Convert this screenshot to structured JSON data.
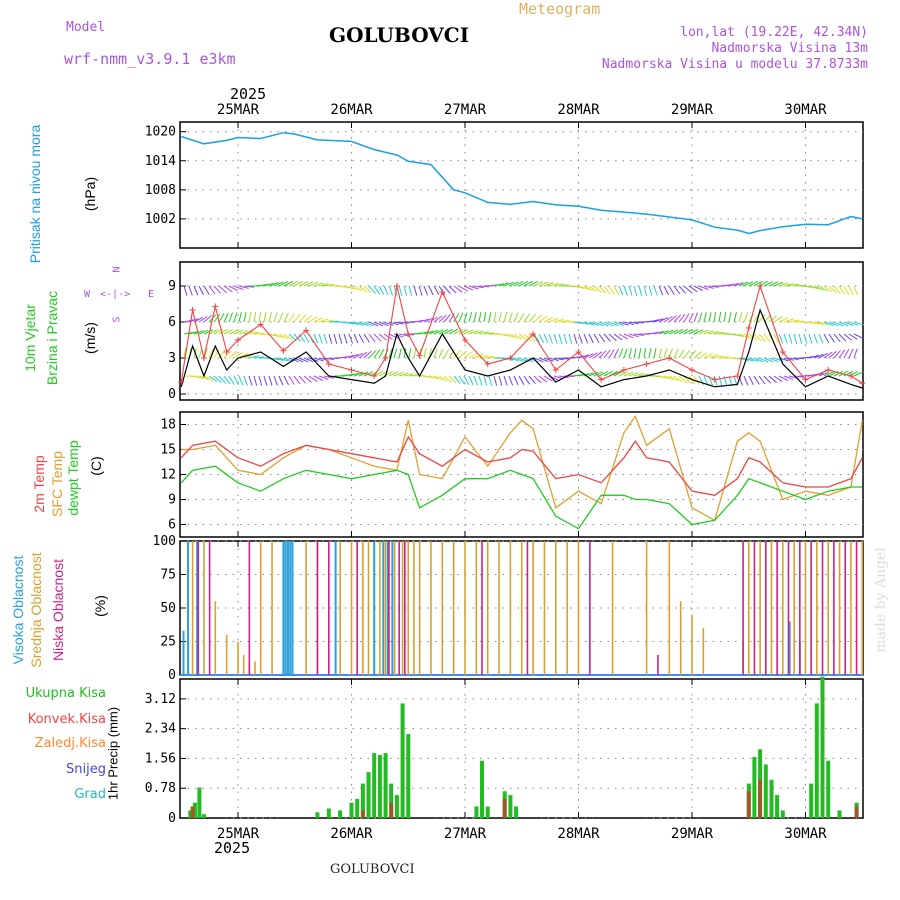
{
  "header": {
    "model_label": "Model",
    "model_name": "wrf-nmm_v3.9.1 e3km",
    "title": "GOLUBOVCI",
    "meteogram_label": "Meteogram",
    "lonlat": "lon,lat (19.22E, 42.34N)",
    "elevation": "Nadmorska Visina 13m",
    "model_elevation": "Nadmorska Visina u modelu 37.8733m",
    "footer": "GOLUBOVCI",
    "watermark": "made by Angel",
    "year_top": "2025",
    "year_bottom": "2025"
  },
  "colors": {
    "pressure": "#1aa0e6",
    "temp2m": "#ee4444",
    "sfc": "#e0a030",
    "dewpt": "#22cc22",
    "visoka": "#2aa0d8",
    "srednja": "#d8a030",
    "niska": "#cc2288",
    "ukupna": "#22bb22",
    "konvek": "#ee4444",
    "zaledj": "#ff8833",
    "snijeg": "#4444dd",
    "grad": "#22bbbb",
    "model_label": "#aa55dd",
    "meteogram": "#e0b060"
  },
  "chart_data": [
    {
      "type": "line",
      "title": "Pritisak na nivou mora",
      "ylabel": "(hPa)",
      "x_days": [
        "25MAR",
        "26MAR",
        "27MAR",
        "28MAR",
        "29MAR",
        "30MAR"
      ],
      "ylim": [
        996,
        1022
      ],
      "yticks": [
        1002,
        1008,
        1014,
        1020
      ],
      "x": [
        -0.5,
        -0.3,
        -0.1,
        0.0,
        0.2,
        0.4,
        0.5,
        0.7,
        1.0,
        1.2,
        1.4,
        1.5,
        1.7,
        1.9,
        2.0,
        2.2,
        2.4,
        2.6,
        2.8,
        3.0,
        3.2,
        3.4,
        3.6,
        3.8,
        4.0,
        4.2,
        4.4,
        4.5,
        4.6,
        4.8,
        5.0,
        5.2,
        5.4,
        5.5
      ],
      "series": [
        {
          "name": "Pritisak",
          "values": [
            1019,
            1017.5,
            1018.2,
            1018.8,
            1018.6,
            1019.8,
            1019.5,
            1018.3,
            1018.0,
            1016.3,
            1015.2,
            1013.9,
            1013.2,
            1008,
            1007.4,
            1005.4,
            1005.0,
            1005.6,
            1004.9,
            1004.6,
            1003.8,
            1003.4,
            1003.0,
            1002.4,
            1001.8,
            1000.3,
            999.7,
            999.0,
            999.6,
            1000.4,
            1000.9,
            1000.8,
            1002.5,
            1002.0
          ]
        }
      ]
    },
    {
      "type": "line",
      "title": "10m Vjetar Brzina i Pravac",
      "ylabel": "(m/s)",
      "direction_legend": [
        "N",
        "W",
        "<-|->",
        "E",
        "S"
      ],
      "ylim": [
        -0.5,
        11
      ],
      "yticks": [
        0,
        3,
        6,
        9
      ],
      "x": [
        -0.5,
        -0.4,
        -0.3,
        -0.2,
        -0.1,
        0.0,
        0.2,
        0.4,
        0.6,
        0.8,
        1.0,
        1.2,
        1.3,
        1.4,
        1.5,
        1.6,
        1.8,
        2.0,
        2.2,
        2.4,
        2.6,
        2.8,
        3.0,
        3.2,
        3.4,
        3.6,
        3.8,
        4.0,
        4.2,
        4.4,
        4.5,
        4.6,
        4.8,
        5.0,
        5.2,
        5.4,
        5.5
      ],
      "series": [
        {
          "name": "Brzina (max)",
          "values": [
            1.0,
            7.0,
            3.0,
            7.3,
            3.5,
            4.5,
            5.8,
            3.6,
            5.3,
            2.5,
            2.0,
            1.5,
            3.0,
            9.0,
            5.0,
            3.2,
            8.5,
            4.5,
            2.5,
            3.0,
            5.0,
            2.0,
            3.5,
            1.2,
            2.0,
            2.5,
            3.0,
            2.0,
            1.2,
            1.5,
            5.5,
            9.0,
            3.5,
            1.2,
            2.0,
            1.5,
            0.9
          ]
        },
        {
          "name": "Brzina",
          "values": [
            0.6,
            4.0,
            1.5,
            4.0,
            2.0,
            3.0,
            3.5,
            2.3,
            3.5,
            1.5,
            1.2,
            0.9,
            1.5,
            5.0,
            3.0,
            1.5,
            5.0,
            2.0,
            1.5,
            2.0,
            3.0,
            1.0,
            2.0,
            0.6,
            1.2,
            1.5,
            2.0,
            1.2,
            0.6,
            0.8,
            3.5,
            7.0,
            2.5,
            0.6,
            1.5,
            0.8,
            0.5
          ]
        }
      ],
      "arrow_rows": [
        9,
        6,
        5,
        3,
        1.5
      ]
    },
    {
      "type": "line",
      "title": "2m Temp / SFC Temp / dewpt Temp",
      "ylabel": "(C)",
      "ylim": [
        4.5,
        19.5
      ],
      "yticks": [
        6,
        9,
        12,
        15,
        18
      ],
      "x": [
        -0.5,
        -0.4,
        -0.2,
        0.0,
        0.2,
        0.4,
        0.6,
        0.8,
        1.0,
        1.2,
        1.4,
        1.5,
        1.6,
        1.8,
        2.0,
        2.2,
        2.4,
        2.5,
        2.6,
        2.8,
        3.0,
        3.2,
        3.4,
        3.5,
        3.6,
        3.8,
        4.0,
        4.2,
        4.4,
        4.5,
        4.6,
        4.8,
        5.0,
        5.2,
        5.4,
        5.5
      ],
      "series": [
        {
          "name": "2m Temp",
          "values": [
            14.0,
            15.5,
            16.0,
            14.0,
            13.0,
            14.5,
            15.5,
            15.0,
            14.5,
            14.0,
            13.5,
            16.5,
            14.5,
            13.0,
            15.0,
            13.5,
            14.0,
            15.0,
            14.8,
            11.5,
            12.0,
            11.0,
            14.0,
            16.0,
            14.0,
            13.5,
            10.0,
            9.5,
            11.5,
            14.0,
            13.5,
            11.0,
            10.5,
            10.5,
            11.5,
            14.0
          ]
        },
        {
          "name": "SFC Temp",
          "values": [
            15.0,
            15.0,
            15.5,
            12.5,
            12.0,
            14.0,
            15.5,
            15.0,
            14.0,
            13.0,
            12.5,
            18.5,
            12.0,
            11.5,
            16.5,
            13.0,
            17.0,
            18.5,
            17.5,
            8.0,
            10.0,
            8.5,
            17.0,
            19.0,
            15.5,
            17.5,
            8.0,
            6.5,
            16.0,
            17.0,
            16.0,
            9.0,
            10.0,
            9.5,
            10.5,
            18.5
          ]
        },
        {
          "name": "dewpt Temp",
          "values": [
            11.0,
            12.5,
            13.0,
            11.0,
            10.0,
            11.5,
            12.5,
            12.0,
            11.5,
            12.0,
            12.5,
            12.0,
            8.0,
            9.5,
            11.5,
            11.5,
            12.5,
            12.0,
            11.5,
            7.0,
            5.5,
            9.5,
            9.5,
            9.0,
            9.0,
            8.5,
            6.0,
            6.5,
            9.5,
            11.5,
            11.0,
            10.0,
            9.0,
            10.0,
            10.5,
            10.5
          ]
        }
      ]
    },
    {
      "type": "bar",
      "title": "Visoka / Srednja / Niska Oblacnost",
      "ylabel": "(%)",
      "ylim": [
        0,
        100
      ],
      "yticks": [
        0,
        25,
        50,
        75,
        100
      ],
      "series": [
        {
          "name": "Visoka Oblacnost",
          "x": [
            -0.48,
            -0.44,
            -0.36,
            0.4,
            0.42,
            0.44,
            0.46,
            0.48,
            0.86,
            1.2,
            1.28,
            1.32,
            1.36,
            4.86,
            4.95
          ],
          "values": [
            33,
            100,
            100,
            100,
            100,
            100,
            100,
            100,
            100,
            100,
            100,
            100,
            100,
            40,
            25
          ]
        },
        {
          "name": "Srednja Oblacnost",
          "x": [
            -0.4,
            -0.3,
            -0.2,
            -0.1,
            0.0,
            0.05,
            0.1,
            0.15,
            0.2,
            0.3,
            0.6,
            0.7,
            0.9,
            1.0,
            1.1,
            1.15,
            1.25,
            1.3,
            1.38,
            1.45,
            1.5,
            1.55,
            1.6,
            1.7,
            1.8,
            1.9,
            2.0,
            2.1,
            2.2,
            2.3,
            2.4,
            2.5,
            2.6,
            2.7,
            2.8,
            2.9,
            3.0,
            3.3,
            3.6,
            3.8,
            3.9,
            4.0,
            4.1,
            4.45,
            4.5,
            4.6,
            4.7,
            4.8,
            4.9,
            5.0,
            5.1,
            5.2,
            5.3,
            5.4,
            5.5
          ],
          "values": [
            100,
            100,
            55,
            30,
            25,
            15,
            10,
            10,
            100,
            100,
            100,
            100,
            100,
            100,
            100,
            100,
            100,
            100,
            100,
            100,
            100,
            100,
            100,
            100,
            100,
            100,
            100,
            100,
            100,
            100,
            100,
            100,
            100,
            100,
            100,
            100,
            100,
            100,
            100,
            100,
            55,
            45,
            35,
            25,
            100,
            100,
            100,
            100,
            100,
            100,
            100,
            100,
            100,
            100,
            100
          ]
        },
        {
          "name": "Niska Oblacnost",
          "x": [
            -0.35,
            -0.25,
            0.1,
            0.7,
            0.8,
            1.05,
            1.33,
            1.42,
            1.47,
            2.15,
            2.55,
            3.1,
            3.7,
            4.45,
            4.55,
            4.65,
            4.75,
            4.85,
            4.95,
            5.05,
            5.15,
            5.25,
            5.35,
            5.45
          ],
          "values": [
            100,
            100,
            100,
            100,
            100,
            100,
            100,
            100,
            100,
            100,
            100,
            100,
            15,
            100,
            100,
            100,
            100,
            100,
            100,
            100,
            100,
            100,
            100,
            100
          ]
        }
      ]
    },
    {
      "type": "bar",
      "title": "1hr Precip",
      "ylabel": "1hr Precip (mm)",
      "ylim": [
        0,
        3.64
      ],
      "yticks": [
        0,
        0.78,
        1.56,
        2.34,
        3.12
      ],
      "legend": [
        "Ukupna Kisa",
        "Konvek.Kisa",
        "Zaledj.Kisa",
        "Snijeg",
        "Grad"
      ],
      "series": [
        {
          "name": "Ukupna Kisa",
          "x": [
            -0.42,
            -0.38,
            -0.34,
            -0.3,
            0.7,
            0.8,
            0.9,
            1.0,
            1.05,
            1.1,
            1.15,
            1.2,
            1.25,
            1.3,
            1.35,
            1.4,
            1.45,
            1.5,
            2.1,
            2.15,
            2.2,
            2.35,
            2.4,
            2.45,
            4.5,
            4.55,
            4.6,
            4.65,
            4.7,
            4.75,
            4.8,
            5.05,
            5.1,
            5.15,
            5.2,
            5.3,
            5.45
          ],
          "values": [
            0.2,
            0.4,
            0.8,
            0.1,
            0.15,
            0.25,
            0.2,
            0.4,
            0.5,
            0.9,
            1.2,
            1.7,
            1.65,
            1.7,
            0.9,
            0.6,
            3.0,
            2.2,
            0.3,
            1.5,
            0.3,
            0.7,
            0.6,
            0.3,
            0.9,
            1.6,
            1.8,
            1.4,
            1.0,
            0.6,
            0.2,
            0.9,
            3.0,
            3.7,
            1.5,
            0.2,
            0.4
          ]
        },
        {
          "name": "Konvek.Kisa",
          "x": [
            -0.4,
            1.1,
            1.35,
            2.35,
            4.5,
            4.6,
            5.45
          ],
          "values": [
            0.3,
            0.2,
            0.4,
            0.5,
            0.7,
            1.0,
            0.3
          ]
        }
      ]
    }
  ]
}
